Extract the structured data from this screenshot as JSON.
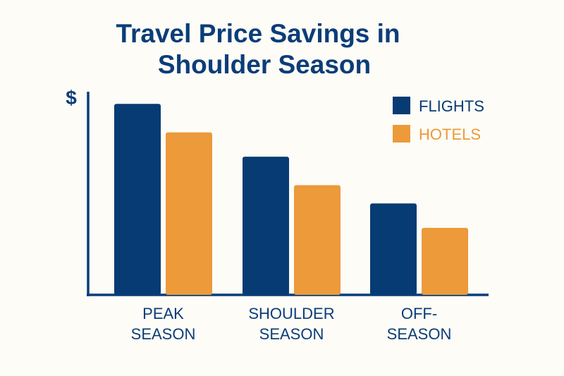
{
  "chart_data": {
    "type": "bar",
    "title_lines": [
      "Travel Price Savings in",
      "Shoulder Season"
    ],
    "ylabel": "$",
    "xlabel": "",
    "categories": [
      [
        "PEAK",
        "SEASON"
      ],
      [
        "SHOULDER",
        "SEASON"
      ],
      [
        "OFF-",
        "SEASON"
      ]
    ],
    "series": [
      {
        "name": "FLIGHTS",
        "color": "#073b73",
        "values": [
          94,
          68,
          45
        ]
      },
      {
        "name": "HOTELS",
        "color": "#ec9a3a",
        "values": [
          80,
          54,
          33
        ]
      }
    ],
    "ylim": [
      0,
      100
    ],
    "grid": false,
    "legend_position": "top-right",
    "axis_color": "#0b3d78"
  }
}
